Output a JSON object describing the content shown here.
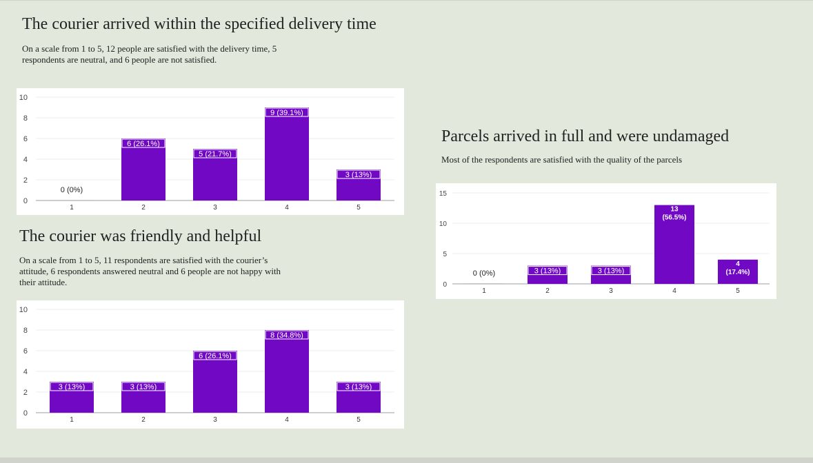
{
  "sections": [
    {
      "title": "The courier arrived within the specified delivery time",
      "description_lines": [
        "On a scale from 1 to 5, 12 people are satisfied with the delivery time, 5",
        "respondents are neutral, and 6 people are not satisfied."
      ]
    },
    {
      "title": "The courier was friendly and helpful",
      "description_lines": [
        "On a scale from 1 to 5,  11 respondents are satisfied with the courier’s",
        "attitude, 6 respondents answered neutral and 6 people are not happy with",
        "their attitude."
      ]
    },
    {
      "title": "Parcels arrived in full and were undamaged",
      "description_lines": [
        "Most of the respondents are satisfied with the quality of the parcels"
      ]
    }
  ],
  "colors": {
    "bar": "#7008c4",
    "background": "#e2e8db",
    "panel": "#ffffff"
  },
  "chart_data": [
    {
      "type": "bar",
      "title": "",
      "xlabel": "",
      "ylabel": "",
      "categories": [
        "1",
        "2",
        "3",
        "4",
        "5"
      ],
      "values": [
        0,
        6,
        5,
        9,
        3
      ],
      "data_labels": [
        "0 (0%)",
        "6 (26.1%)",
        "5 (21.7%)",
        "9 (39.1%)",
        "3 (13%)"
      ],
      "ylim": [
        0,
        10
      ],
      "yticks": [
        0,
        2,
        4,
        6,
        8,
        10
      ],
      "grid": true
    },
    {
      "type": "bar",
      "title": "",
      "xlabel": "",
      "ylabel": "",
      "categories": [
        "1",
        "2",
        "3",
        "4",
        "5"
      ],
      "values": [
        3,
        3,
        6,
        8,
        3
      ],
      "data_labels": [
        "3 (13%)",
        "3 (13%)",
        "6 (26.1%)",
        "8 (34.8%)",
        "3 (13%)"
      ],
      "ylim": [
        0,
        10
      ],
      "yticks": [
        0,
        2,
        4,
        6,
        8,
        10
      ],
      "grid": true
    },
    {
      "type": "bar",
      "title": "",
      "xlabel": "",
      "ylabel": "",
      "categories": [
        "1",
        "2",
        "3",
        "4",
        "5"
      ],
      "values": [
        0,
        3,
        3,
        13,
        4
      ],
      "data_labels": [
        "0 (0%)",
        "3 (13%)",
        "3 (13%)",
        "13 (56.5%)",
        "4 (17.4%)"
      ],
      "ylim": [
        0,
        15
      ],
      "yticks": [
        0,
        5,
        10,
        15
      ],
      "grid": true
    }
  ]
}
